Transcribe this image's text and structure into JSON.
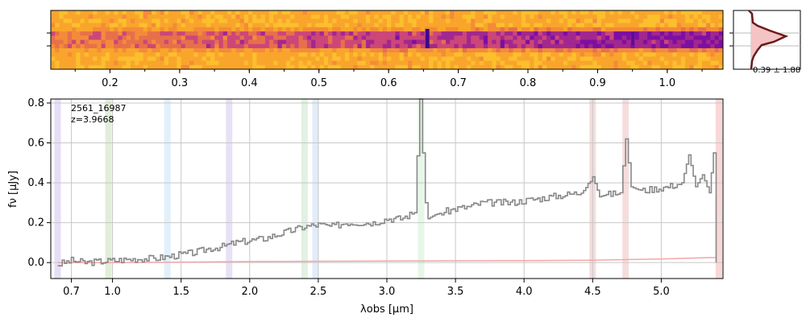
{
  "chart_data": [
    {
      "type": "heatmap",
      "name": "2D spectrum",
      "colormap": "plasma",
      "xaxis_ticks": [
        "0.2",
        "0.3",
        "0.4",
        "0.5",
        "0.6",
        "0.7",
        "0.8",
        "0.9",
        "1.0"
      ],
      "xaxis_tick_values": [
        0.2,
        0.3,
        0.4,
        0.5,
        0.6,
        0.7,
        0.8,
        0.9,
        1.0
      ],
      "xlim": [
        0.115,
        1.08
      ]
    },
    {
      "type": "line",
      "name": "profile",
      "annotation": "0.39 ± 1.88",
      "colors": {
        "line": "#6b1a1a",
        "fill": "#f4c3c3"
      }
    },
    {
      "type": "line",
      "name": "1D spectrum",
      "annotation_id": "2561_16987",
      "annotation_z": "z=3.9668",
      "xlabel": "λobs [μm]",
      "ylabel": "fν [μJy]",
      "xlim": [
        0.55,
        5.45
      ],
      "ylim": [
        -0.08,
        0.82
      ],
      "grid": true,
      "xticks": [
        "0.7",
        "1.0",
        "1.5",
        "2.0",
        "2.5",
        "3.0",
        "3.5",
        "4.0",
        "4.5",
        "5.0"
      ],
      "xtick_values": [
        0.7,
        1.0,
        1.5,
        2.0,
        2.5,
        3.0,
        3.5,
        4.0,
        4.5,
        5.0
      ],
      "yticks": [
        "0.0",
        "0.2",
        "0.4",
        "0.6",
        "0.8"
      ],
      "ytick_values": [
        0.0,
        0.2,
        0.4,
        0.6,
        0.8
      ],
      "series": [
        {
          "role": "flux",
          "color": "#888888",
          "x": [
            0.6,
            0.7,
            0.8,
            0.9,
            1.0,
            1.1,
            1.2,
            1.3,
            1.4,
            1.5,
            1.6,
            1.7,
            1.8,
            1.9,
            2.0,
            2.1,
            2.2,
            2.3,
            2.4,
            2.5,
            2.6,
            2.7,
            2.8,
            2.9,
            3.0,
            3.1,
            3.2,
            3.24,
            3.26,
            3.28,
            3.3,
            3.35,
            3.4,
            3.5,
            3.6,
            3.7,
            3.8,
            3.9,
            4.0,
            4.1,
            4.2,
            4.3,
            4.4,
            4.5,
            4.55,
            4.6,
            4.7,
            4.74,
            4.78,
            4.85,
            4.95,
            5.05,
            5.15,
            5.2,
            5.25,
            5.3,
            5.35,
            5.38,
            5.4
          ],
          "y": [
            -0.01,
            0.01,
            0.0,
            0.005,
            0.01,
            0.015,
            0.02,
            0.02,
            0.03,
            0.04,
            0.05,
            0.07,
            0.08,
            0.1,
            0.11,
            0.12,
            0.14,
            0.16,
            0.18,
            0.19,
            0.18,
            0.2,
            0.2,
            0.2,
            0.22,
            0.22,
            0.25,
            0.82,
            0.55,
            0.3,
            0.22,
            0.24,
            0.25,
            0.27,
            0.28,
            0.3,
            0.3,
            0.3,
            0.31,
            0.32,
            0.33,
            0.34,
            0.35,
            0.43,
            0.33,
            0.34,
            0.35,
            0.62,
            0.38,
            0.36,
            0.37,
            0.38,
            0.4,
            0.54,
            0.38,
            0.44,
            0.35,
            0.55,
            0.0
          ]
        },
        {
          "role": "error",
          "color": "#f4a6a6",
          "x": [
            0.6,
            1.0,
            2.0,
            3.0,
            4.0,
            4.5,
            5.0,
            5.35,
            5.4
          ],
          "y": [
            0.0,
            0.0,
            0.005,
            0.008,
            0.01,
            0.012,
            0.018,
            0.025,
            0.025
          ]
        }
      ],
      "line_bands": [
        {
          "x": 0.6,
          "color": "#d6c8f0"
        },
        {
          "x": 0.97,
          "color": "#cfe3c0"
        },
        {
          "x": 1.4,
          "color": "#cde6f7"
        },
        {
          "x": 1.85,
          "color": "#d8cdef"
        },
        {
          "x": 2.4,
          "color": "#cfe8cf"
        },
        {
          "x": 2.48,
          "color": "#cfe0f5"
        },
        {
          "x": 3.25,
          "color": "#d7f0d7"
        },
        {
          "x": 4.5,
          "color": "#e9c7c7"
        },
        {
          "x": 4.74,
          "color": "#f0c7c7"
        },
        {
          "x": 5.42,
          "color": "#f6bdbd"
        }
      ]
    }
  ]
}
